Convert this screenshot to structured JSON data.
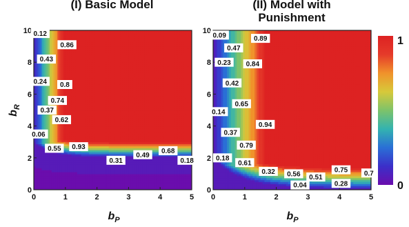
{
  "panels": [
    {
      "title_line1": "(I) Basic Model",
      "title_line2": "",
      "xlabel": "b",
      "xlabel_sub": "P",
      "ylabel": "b",
      "ylabel_sub": "R"
    },
    {
      "title_line1": "(II) Model with",
      "title_line2": "Punishment",
      "xlabel": "b",
      "xlabel_sub": "P",
      "ylabel": "",
      "ylabel_sub": ""
    }
  ],
  "colorbar": {
    "max_label": "1",
    "min_label": "0",
    "colors": [
      "#6a0dad",
      "#3b2fc9",
      "#2a6fd6",
      "#33b3b0",
      "#7dc36a",
      "#d7c93a",
      "#f0922b",
      "#e53a2a",
      "#dd2222"
    ]
  },
  "chart_data": [
    {
      "type": "heatmap",
      "title": "(I) Basic Model",
      "xlabel": "bP",
      "ylabel": "bR",
      "xlim": [
        0,
        5
      ],
      "ylim": [
        0,
        10
      ],
      "xticks": [
        "0",
        "1",
        "2",
        "3",
        "4",
        "5"
      ],
      "yticks": [
        "0",
        "2",
        "4",
        "6",
        "8",
        "10"
      ],
      "zlim": [
        0,
        1
      ],
      "contour_labels": [
        {
          "x": 0.2,
          "y": 9.8,
          "v": "0.12"
        },
        {
          "x": 1.05,
          "y": 9.1,
          "v": "0.86"
        },
        {
          "x": 0.4,
          "y": 8.2,
          "v": "0.43"
        },
        {
          "x": 0.2,
          "y": 6.8,
          "v": "0.24"
        },
        {
          "x": 0.98,
          "y": 6.6,
          "v": "0.8"
        },
        {
          "x": 0.75,
          "y": 5.6,
          "v": "0.74"
        },
        {
          "x": 0.42,
          "y": 5.0,
          "v": "0.37"
        },
        {
          "x": 0.88,
          "y": 4.4,
          "v": "0.62"
        },
        {
          "x": 0.15,
          "y": 3.5,
          "v": "0.06"
        },
        {
          "x": 0.65,
          "y": 2.6,
          "v": "0.55"
        },
        {
          "x": 1.42,
          "y": 2.7,
          "v": "0.93"
        },
        {
          "x": 2.6,
          "y": 1.85,
          "v": "0.31"
        },
        {
          "x": 3.45,
          "y": 2.2,
          "v": "0.49"
        },
        {
          "x": 4.25,
          "y": 2.45,
          "v": "0.68"
        },
        {
          "x": 4.85,
          "y": 1.85,
          "v": "0.18"
        }
      ]
    },
    {
      "type": "heatmap",
      "title": "(II) Model with Punishment",
      "xlabel": "bP",
      "ylabel": "bR",
      "xlim": [
        0,
        5
      ],
      "ylim": [
        0,
        10
      ],
      "xticks": [
        "0",
        "1",
        "2",
        "3",
        "4",
        "5"
      ],
      "yticks": [
        "0",
        "2",
        "4",
        "6",
        "8",
        "10"
      ],
      "zlim": [
        0,
        1
      ],
      "contour_labels": [
        {
          "x": 0.2,
          "y": 9.7,
          "v": "0.09"
        },
        {
          "x": 1.5,
          "y": 9.5,
          "v": "0.89"
        },
        {
          "x": 0.65,
          "y": 8.9,
          "v": "0.47"
        },
        {
          "x": 0.35,
          "y": 8.0,
          "v": "0.23"
        },
        {
          "x": 1.25,
          "y": 7.9,
          "v": "0.84"
        },
        {
          "x": 0.6,
          "y": 6.7,
          "v": "0.42"
        },
        {
          "x": 0.9,
          "y": 5.4,
          "v": "0.65"
        },
        {
          "x": 0.17,
          "y": 4.9,
          "v": "0.14"
        },
        {
          "x": 0.55,
          "y": 3.6,
          "v": "0.37"
        },
        {
          "x": 1.65,
          "y": 4.1,
          "v": "0.94"
        },
        {
          "x": 1.05,
          "y": 2.8,
          "v": "0.79"
        },
        {
          "x": 0.3,
          "y": 2.0,
          "v": "0.18"
        },
        {
          "x": 1.0,
          "y": 1.7,
          "v": "0.61"
        },
        {
          "x": 1.75,
          "y": 1.15,
          "v": "0.32"
        },
        {
          "x": 2.55,
          "y": 1.0,
          "v": "0.56"
        },
        {
          "x": 3.25,
          "y": 0.8,
          "v": "0.51"
        },
        {
          "x": 4.05,
          "y": 1.25,
          "v": "0.75"
        },
        {
          "x": 2.75,
          "y": 0.3,
          "v": "0.04"
        },
        {
          "x": 4.05,
          "y": 0.4,
          "v": "0.28"
        },
        {
          "x": 4.93,
          "y": 1.05,
          "v": "0.7"
        }
      ]
    }
  ]
}
